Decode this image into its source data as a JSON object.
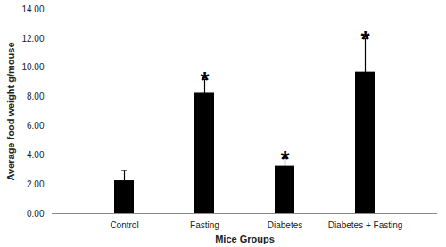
{
  "chart_data": {
    "type": "bar",
    "x_label": "Mice Groups",
    "y_label": "Average food weight g/mouse",
    "categories": [
      "Control",
      "Fasting",
      "Diabetes",
      "Diabetes + Fasting"
    ],
    "values": [
      2.25,
      8.25,
      3.25,
      9.7
    ],
    "errors": [
      0.7,
      0.95,
      0.55,
      2.3
    ],
    "annotations": [
      null,
      "*",
      "*",
      "*"
    ],
    "color": "#000000",
    "ylim": [
      0,
      14
    ],
    "yticks": [
      {
        "value": 0,
        "label": "0.00"
      },
      {
        "value": 2,
        "label": "2.00"
      },
      {
        "value": 4,
        "label": "4.00"
      },
      {
        "value": 6,
        "label": "6.00"
      },
      {
        "value": 8,
        "label": "8.00"
      },
      {
        "value": 10,
        "label": "10.00"
      },
      {
        "value": 12,
        "label": "12.00"
      },
      {
        "value": 14,
        "label": "14.00"
      }
    ],
    "grid": false
  }
}
